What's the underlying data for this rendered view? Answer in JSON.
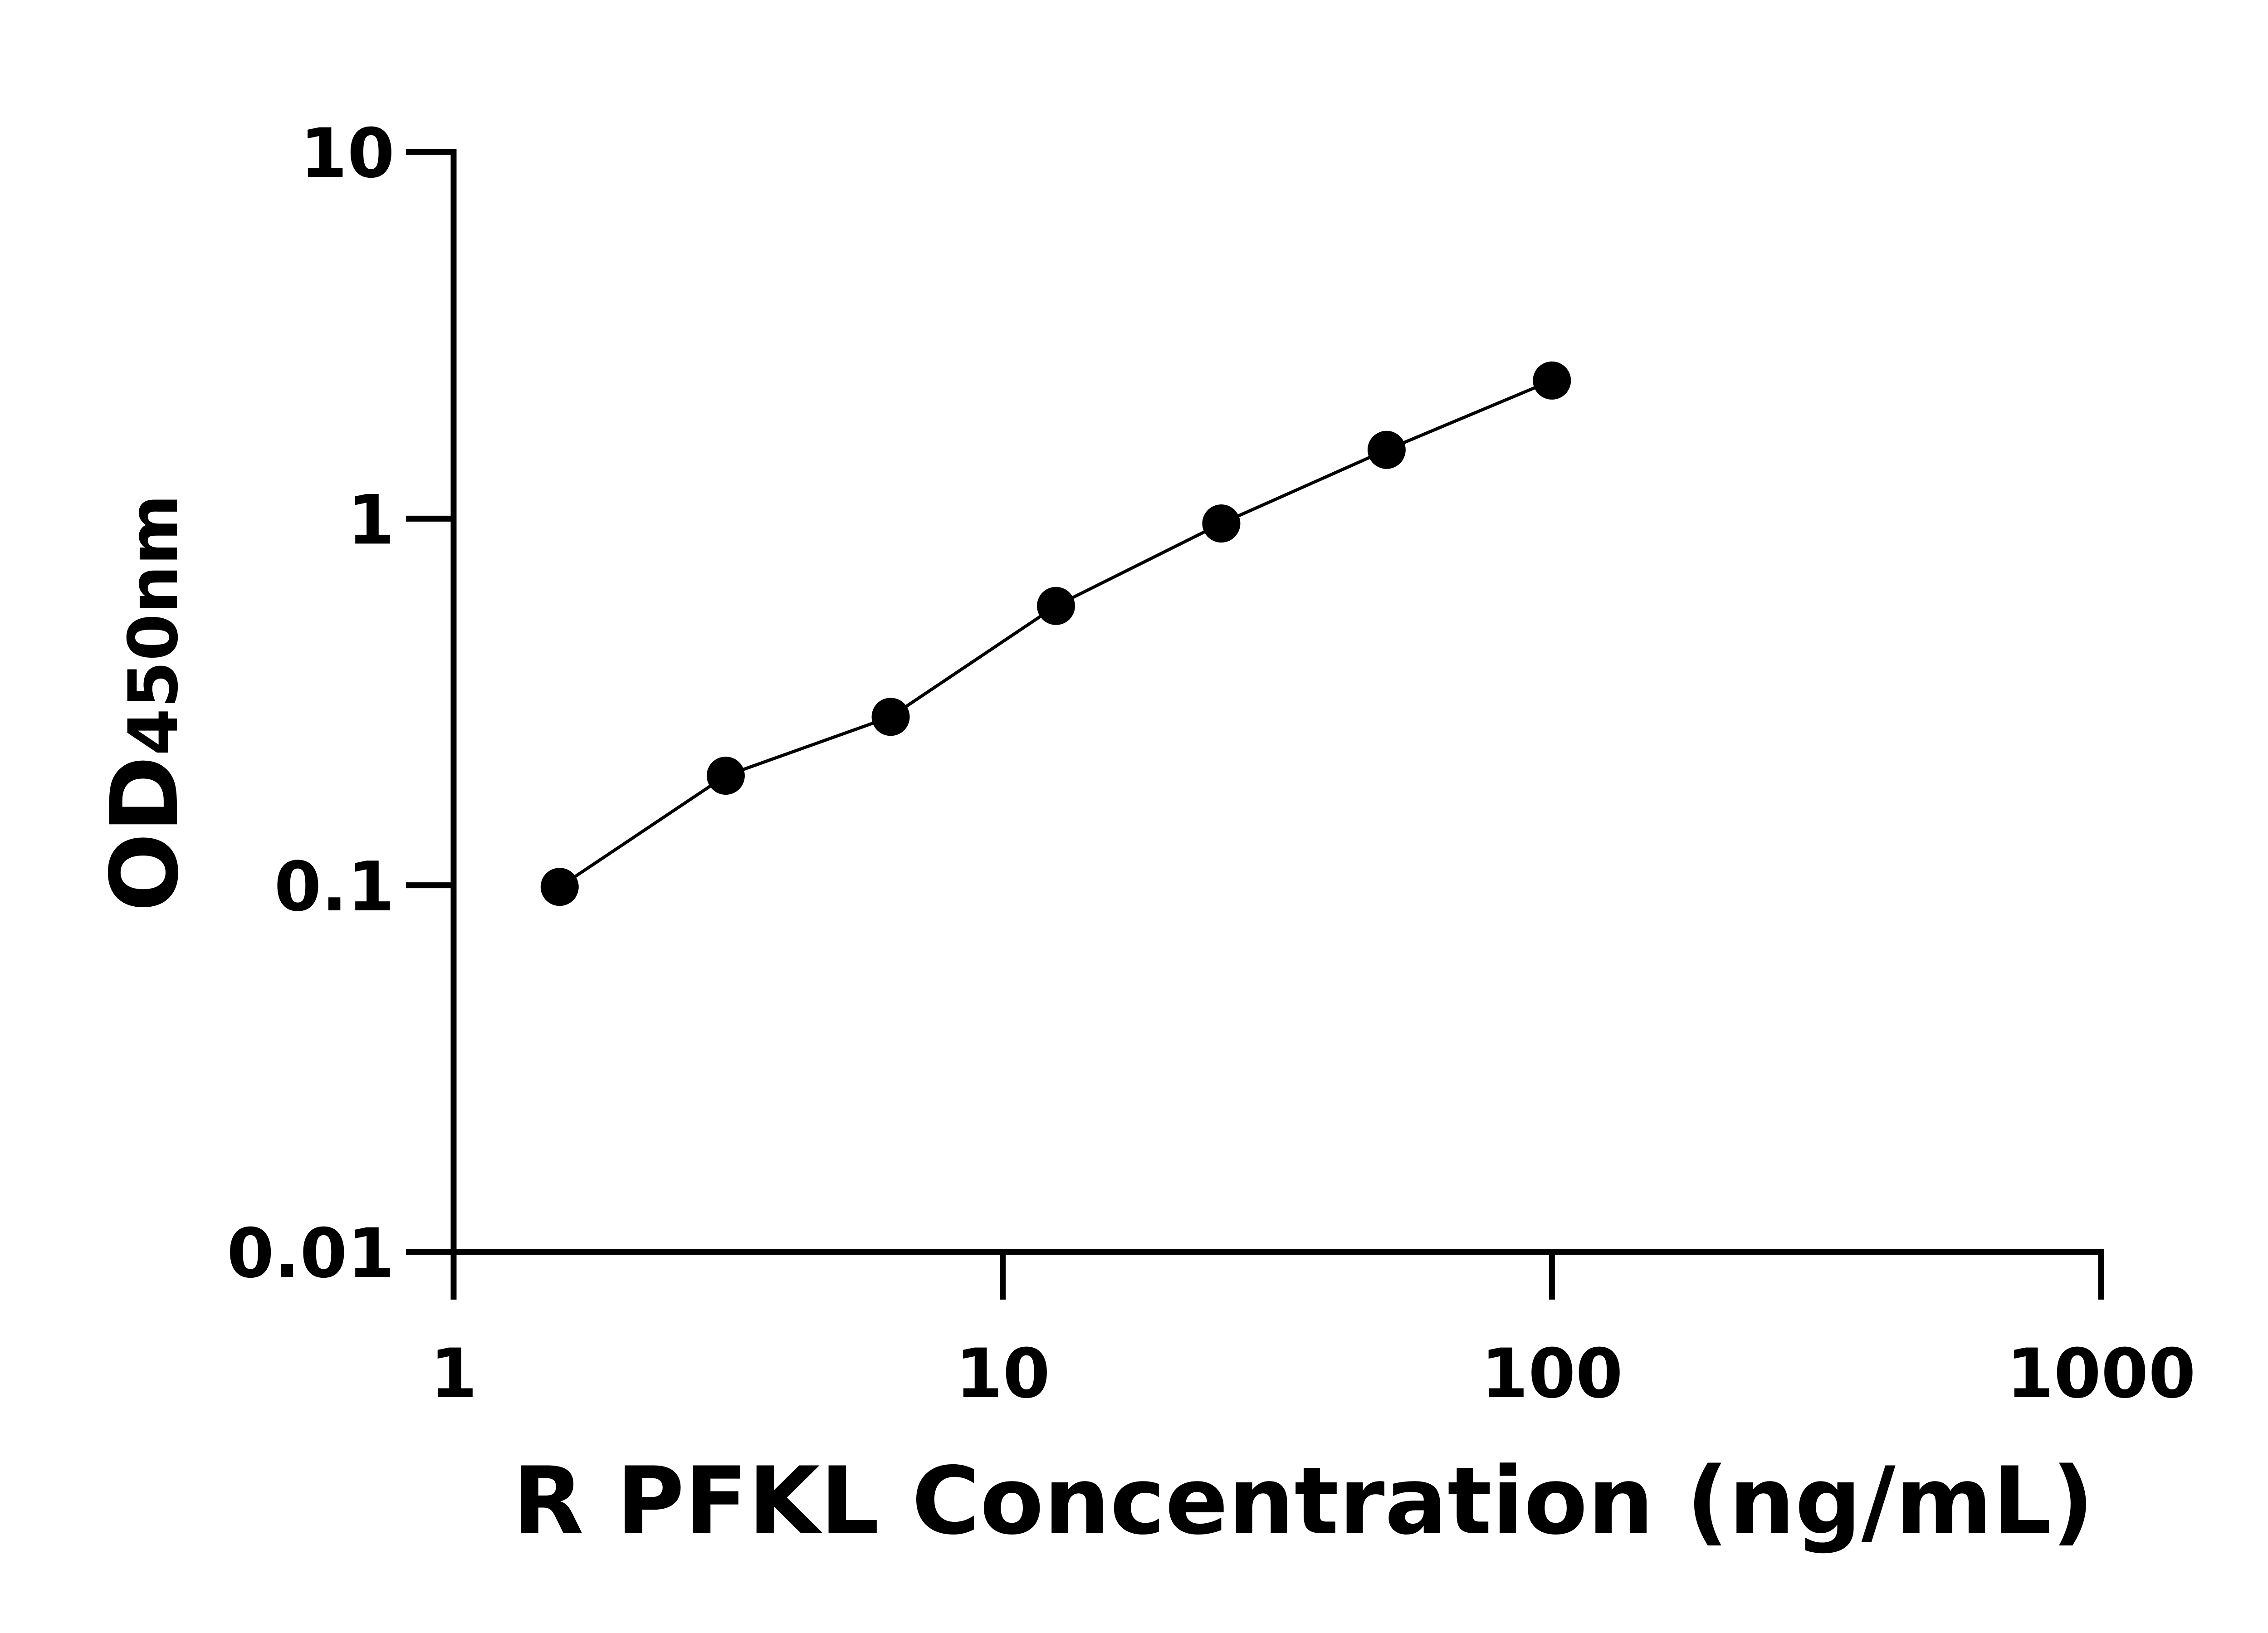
{
  "chart_data": {
    "type": "line",
    "title": "",
    "xlabel": "R PFKL Concentration (ng/mL)",
    "ylabel": {
      "main": "OD",
      "sub": "450nm"
    },
    "xscale": "log",
    "yscale": "log",
    "xlim": [
      1,
      1000
    ],
    "ylim": [
      0.01,
      10
    ],
    "xticks": [
      1,
      10,
      100,
      1000
    ],
    "xtick_labels": [
      "1",
      "10",
      "100",
      "1000"
    ],
    "yticks": [
      0.01,
      0.1,
      1,
      10
    ],
    "ytick_labels": [
      "0.01",
      "0.1",
      "1",
      "10"
    ],
    "grid": false,
    "legend": "none",
    "series": [
      {
        "x": [
          1.56,
          3.13,
          6.25,
          12.5,
          25,
          50,
          100
        ],
        "y": [
          0.099,
          0.199,
          0.288,
          0.578,
          0.97,
          1.54,
          2.38
        ],
        "color": "#000000",
        "marker": "circle"
      }
    ]
  }
}
